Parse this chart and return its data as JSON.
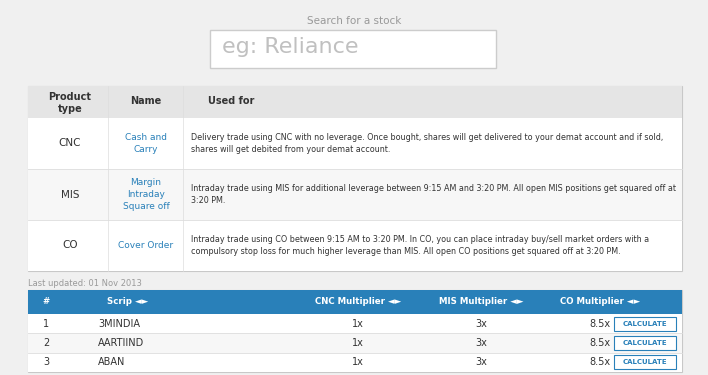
{
  "bg_color": "#f0f0f0",
  "white": "#ffffff",
  "search_label": "Search for a stock",
  "search_placeholder": "eg: Reliance",
  "search_box_color": "#cccccc",
  "product_table": {
    "header_bg": "#e5e5e5",
    "rows": [
      {
        "type": "CNC",
        "name": "Cash and\nCarry",
        "desc": "Delivery trade using CNC with no leverage. Once bought, shares will get delivered to your demat account and if sold,\nshares will get debited from your demat account."
      },
      {
        "type": "MIS",
        "name": "Margin\nIntraday\nSquare off",
        "desc": "Intraday trade using MIS for additional leverage between 9:15 AM and 3:20 PM. All open MIS positions get squared off at\n3:20 PM."
      },
      {
        "type": "CO",
        "name": "Cover Order",
        "desc": "Intraday trade using CO between 9:15 AM to 3:20 PM. In CO, you can place intraday buy/sell market orders with a\ncompulsory stop loss for much higher leverage than MIS. All open CO positions get squared off at 3:20 PM."
      }
    ]
  },
  "last_updated": "Last updated: 01 Nov 2013",
  "multiplier_table": {
    "header_bg": "#2980b9",
    "header_text_color": "#ffffff",
    "rows": [
      {
        "num": "1",
        "scrip": "3MINDIA",
        "cnc": "1x",
        "mis": "3x",
        "co": "8.5x"
      },
      {
        "num": "2",
        "scrip": "AARTIIND",
        "cnc": "1x",
        "mis": "3x",
        "co": "8.5x"
      },
      {
        "num": "3",
        "scrip": "ABAN",
        "cnc": "1x",
        "mis": "3x",
        "co": "8.5x"
      }
    ]
  },
  "calculate_btn_color": "#2980b9",
  "calculate_text": "CALCULATE",
  "row_divider_color": "#dddddd",
  "table_border_color": "#c8c8c8",
  "text_dark": "#333333",
  "text_gray": "#999999",
  "text_blue": "#2980b9"
}
